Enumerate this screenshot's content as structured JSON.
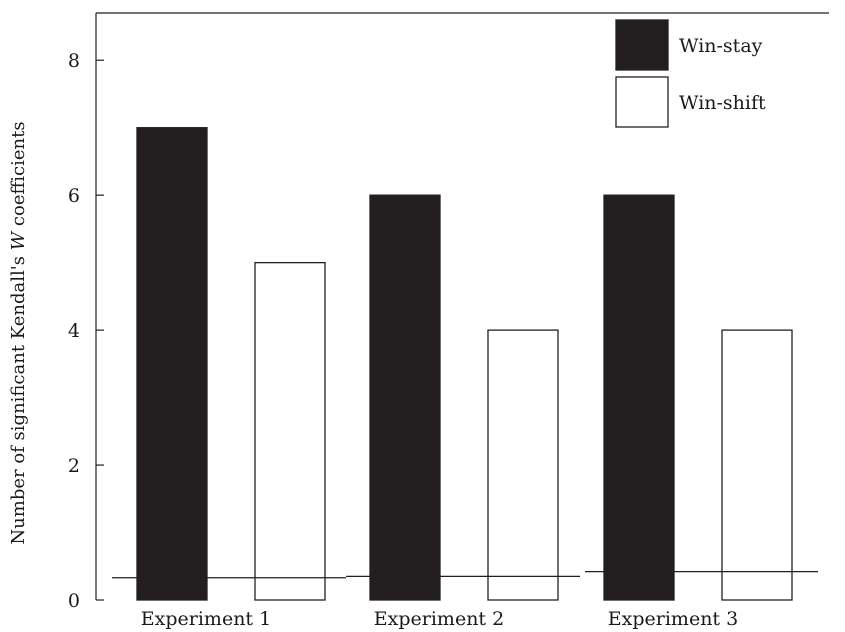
{
  "chart_data": {
    "type": "bar",
    "categories": [
      "Experiment 1",
      "Experiment 2",
      "Experiment 3"
    ],
    "series": [
      {
        "name": "Win-stay",
        "values": [
          7,
          6,
          6
        ],
        "color": "#231f20"
      },
      {
        "name": "Win-shift",
        "values": [
          5,
          4,
          4
        ],
        "color": "#ffffff"
      }
    ],
    "reference_lines": [
      0.33,
      0.35,
      0.42
    ],
    "ylabel_prefix": "Number of significant Kendall's ",
    "ylabel_italic": "W",
    "ylabel_suffix": " coefficients",
    "ylim": [
      0,
      8.7
    ],
    "yticks": [
      0,
      2,
      4,
      6,
      8
    ],
    "grid": false,
    "legend_position": "top-right"
  }
}
